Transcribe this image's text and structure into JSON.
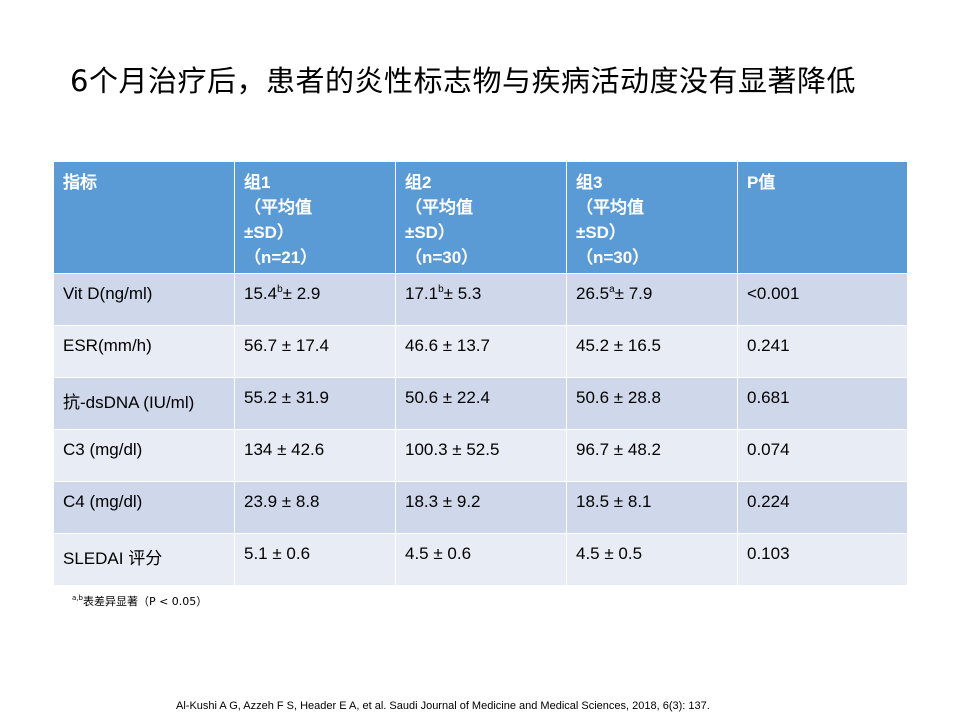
{
  "slide": {
    "title": "6个月治疗后，患者的炎性标志物与疾病活动度没有显著降低",
    "footnote": {
      "sup": "a,b",
      "text": "表差异显著（P < 0.05）"
    },
    "citation": "Al-Kushi A G, Azzeh F S, Header E A, et al. Saudi Journal  of Medicine and Medical Sciences, 2018, 6(3): 137."
  },
  "table": {
    "header": {
      "indicator": "指标",
      "g1": [
        "组1",
        "（平均值",
        "±SD）",
        "（n=21）"
      ],
      "g2": [
        "组2",
        "（平均值",
        "±SD）",
        "（n=30）"
      ],
      "g3": [
        "组3",
        "（平均值",
        "±SD）",
        "（n=30）"
      ],
      "p": "P值"
    },
    "rows": [
      {
        "name": "Vit D(ng/ml)",
        "g1": {
          "mean": "15.4",
          "sup": "b",
          "rest": "± 2.9"
        },
        "g2": {
          "mean": "17.1",
          "sup": "b",
          "rest": "± 5.3"
        },
        "g3": {
          "mean": "26.5",
          "sup": "a",
          "rest": "± 7.9"
        },
        "p": "<0.001"
      },
      {
        "name": "ESR(mm/h)",
        "g1": "56.7 ± 17.4",
        "g2": "46.6 ± 13.7",
        "g3": "45.2 ± 16.5",
        "p": "0.241"
      },
      {
        "name": "抗-dsDNA (IU/ml)",
        "g1": "55.2 ± 31.9",
        "g2": "50.6 ± 22.4",
        "g3": "50.6 ± 28.8",
        "p": "0.681"
      },
      {
        "name": "C3 (mg/dl)",
        "g1": "134 ± 42.6",
        "g2": "100.3 ± 52.5",
        "g3": "96.7 ± 48.2",
        "p": "0.074"
      },
      {
        "name": "C4 (mg/dl)",
        "g1": "23.9 ± 8.8",
        "g2": "18.3 ± 9.2",
        "g3": "18.5 ± 8.1",
        "p": "0.224"
      },
      {
        "name": "SLEDAI 评分",
        "g1": "5.1 ± 0.6",
        "g2": "4.5 ± 0.6",
        "g3": "4.5 ± 0.5",
        "p": "0.103"
      }
    ]
  },
  "colors": {
    "header_bg": "#5b9bd5",
    "row_odd": "#cfd8ea",
    "row_even": "#e8ecf5"
  }
}
